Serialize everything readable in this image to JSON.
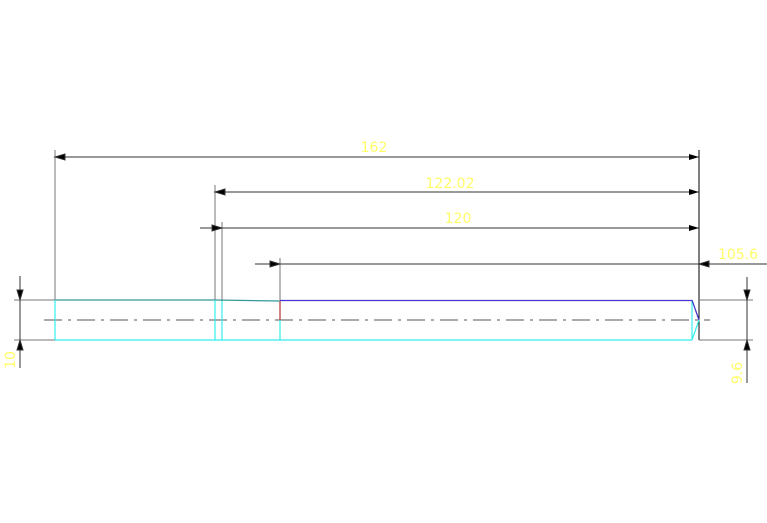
{
  "drawing": {
    "dimensions": {
      "overall_length": "162",
      "length_a": "122.02",
      "length_b": "120",
      "length_c": "105.6",
      "diameter_left": "10",
      "diameter_right": "9.6"
    },
    "colors": {
      "dimension_line": "#000000",
      "dimension_text": "#ffff66",
      "outline_cyan": "#33eeee",
      "outline_blue": "#4433cc",
      "outline_teal": "#339999",
      "extension_line": "#888888",
      "center_line": "#555555"
    }
  }
}
